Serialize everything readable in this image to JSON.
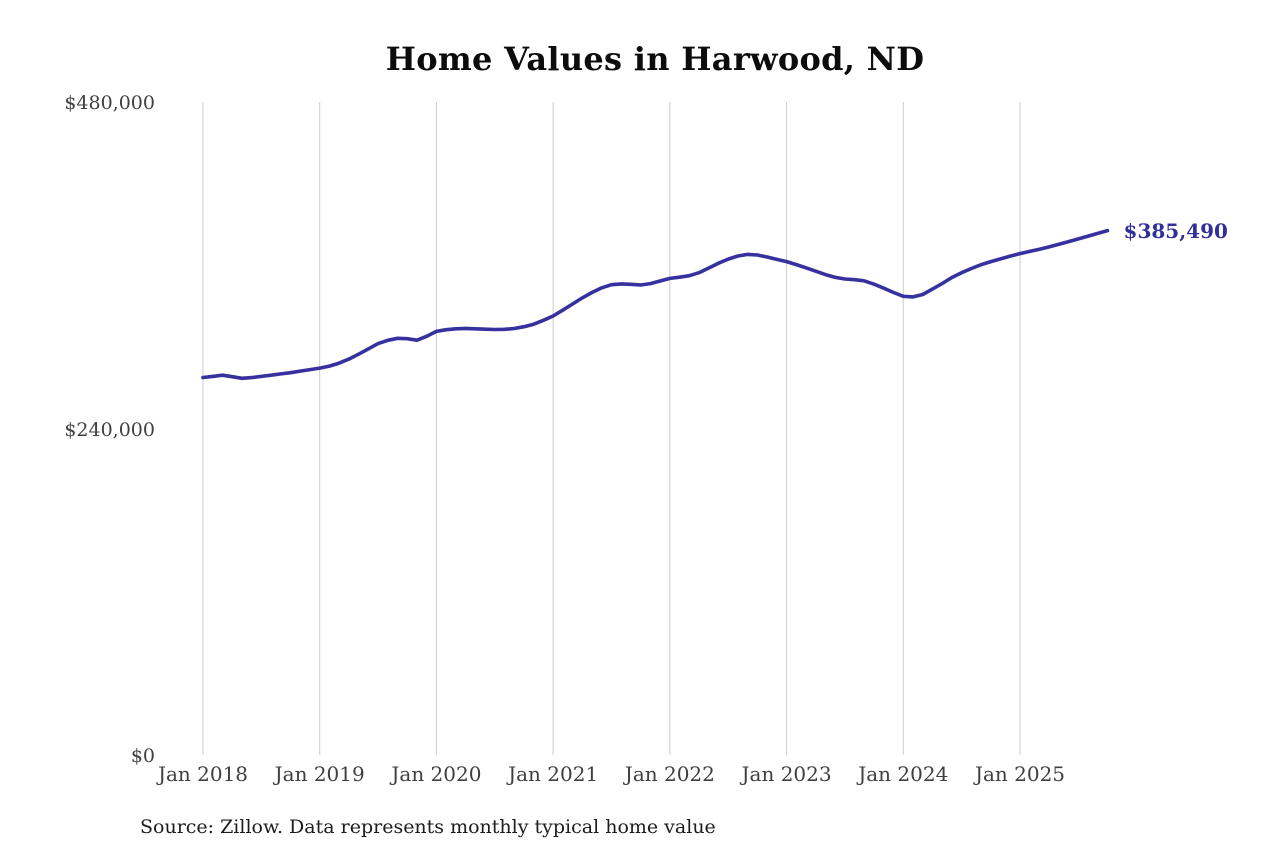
{
  "title": "Home Values in Harwood, ND",
  "source_note": "Source: Zillow. Data represents monthly typical home value",
  "colors": {
    "line": "#37319f",
    "end_label": "#322f9d",
    "gridline": "#cccccc",
    "axis_text": "#3f3f3f",
    "title_text": "#0c0c0c"
  },
  "chart_data": {
    "type": "line",
    "title": "Home Values in Harwood, ND",
    "series_name": "Monthly typical home value (ZHVI)",
    "frequency": "monthly",
    "x_start": "2018-01",
    "x_end": "2025-10",
    "x_tick_labels": [
      "Jan 2018",
      "Jan 2019",
      "Jan 2020",
      "Jan 2021",
      "Jan 2022",
      "Jan 2023",
      "Jan 2024",
      "Jan 2025"
    ],
    "y_ticks": [
      {
        "value": 0,
        "label": "$0"
      },
      {
        "value": 240000,
        "label": "$240,000"
      },
      {
        "value": 480000,
        "label": "$480,000"
      }
    ],
    "ylim": [
      0,
      480000
    ],
    "grid": "vertical-only",
    "legend": "none",
    "end_label": "$385,490",
    "last_value": 385490,
    "values": [
      277500,
      278300,
      279200,
      278100,
      276900,
      277400,
      278300,
      279200,
      280100,
      281000,
      282200,
      283300,
      284400,
      285900,
      288100,
      291000,
      294600,
      298500,
      302400,
      304800,
      306300,
      306000,
      304900,
      307800,
      311400,
      312600,
      313300,
      313600,
      313300,
      313000,
      312800,
      312900,
      313500,
      314800,
      316700,
      319500,
      322700,
      327000,
      331500,
      336000,
      340000,
      343400,
      345700,
      346300,
      346000,
      345500,
      346500,
      348400,
      350300,
      351200,
      352300,
      354500,
      358000,
      361500,
      364500,
      366800,
      368000,
      367500,
      366100,
      364300,
      362700,
      360500,
      358100,
      355600,
      353100,
      351100,
      349900,
      349400,
      348500,
      346100,
      343100,
      340000,
      337200,
      336700,
      338500,
      342500,
      346600,
      351000,
      354500,
      357600,
      360400,
      362700,
      364700,
      366700,
      368600,
      370200,
      371800,
      373500,
      375400,
      377400,
      379400,
      381400,
      383400,
      385490
    ]
  }
}
